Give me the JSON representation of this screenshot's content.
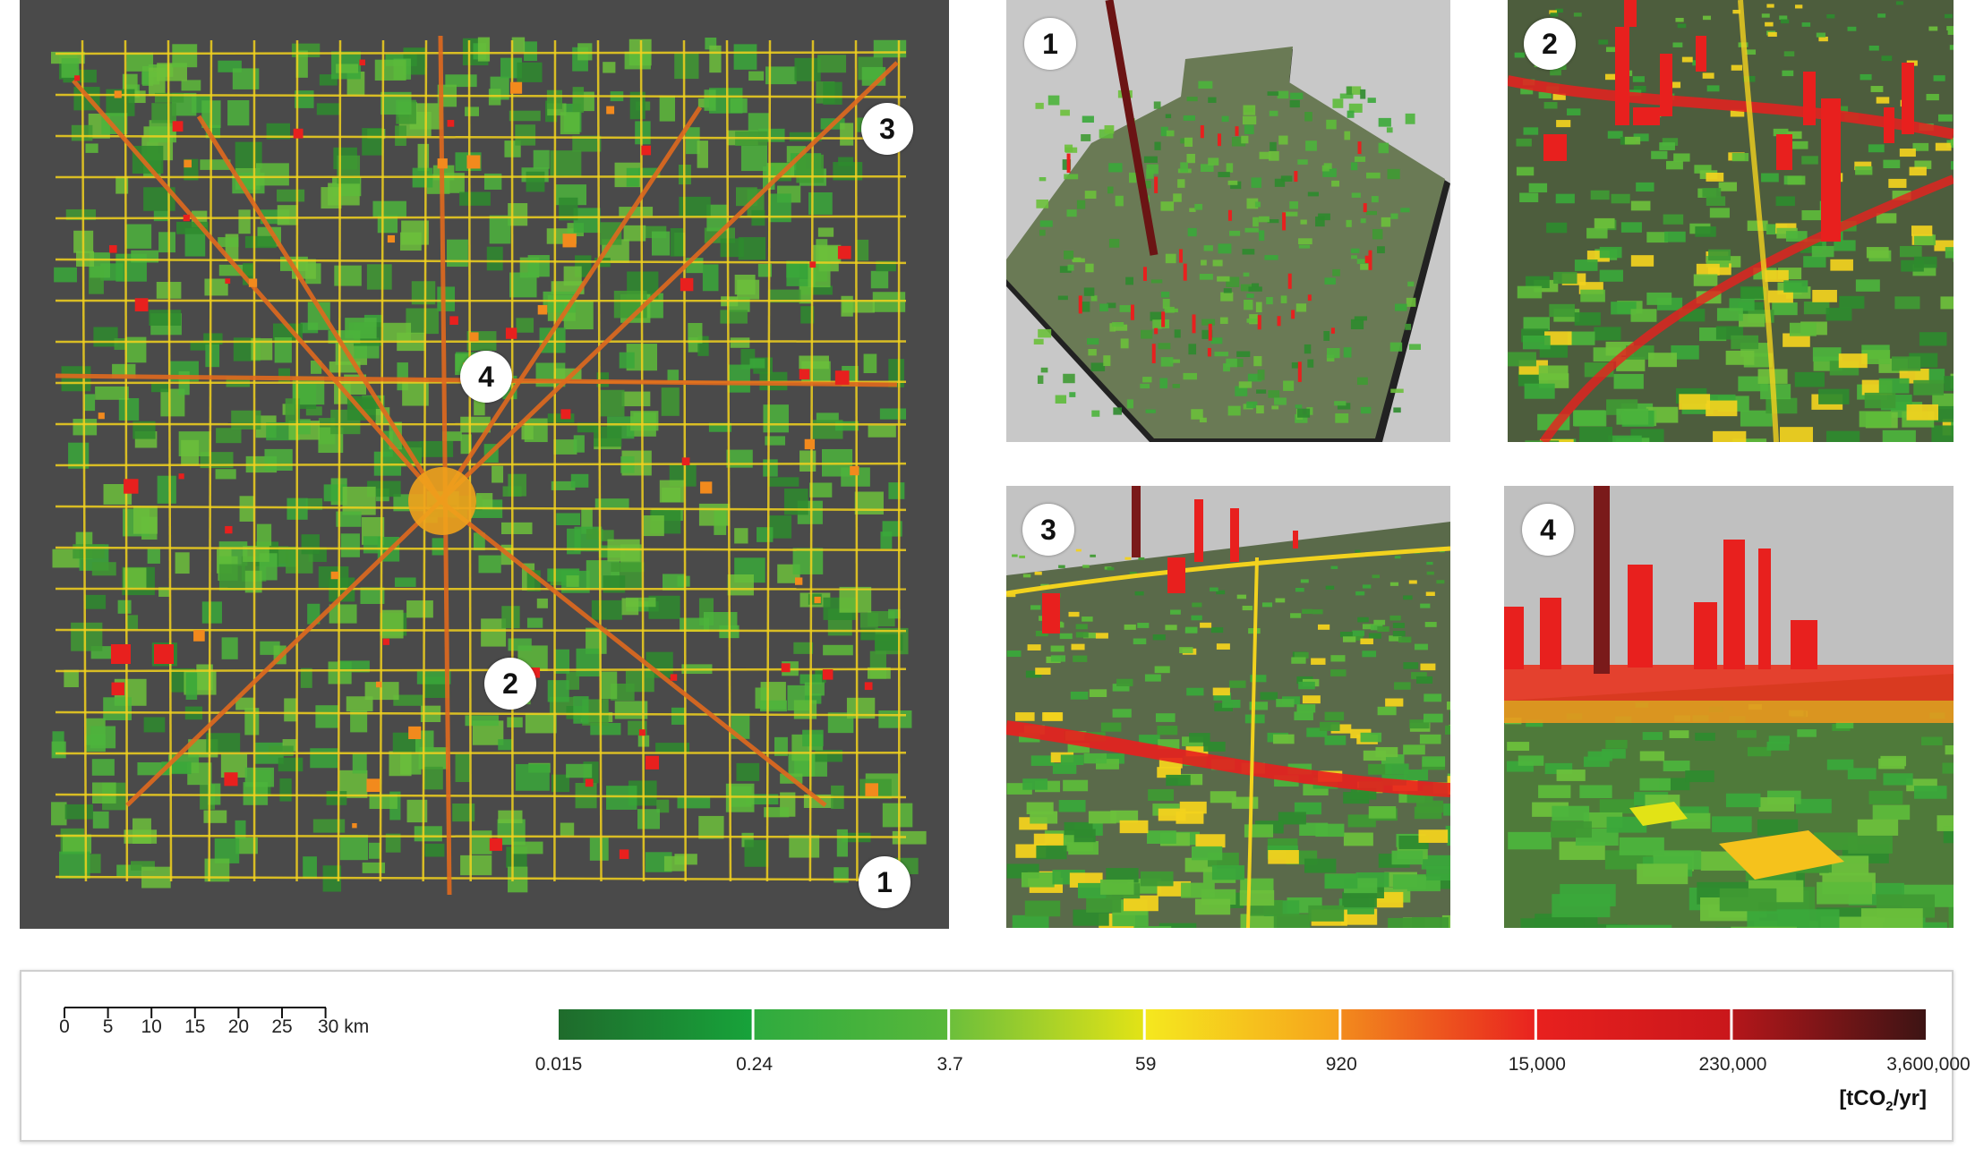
{
  "callouts": {
    "map": [
      "3",
      "4",
      "2",
      "1"
    ],
    "panels": [
      "1",
      "2",
      "3",
      "4"
    ]
  },
  "scale_bar": {
    "ticks": [
      "0",
      "5",
      "10",
      "15",
      "20",
      "25",
      "30 km"
    ]
  },
  "color_scale": {
    "labels": [
      "0.015",
      "0.24",
      "3.7",
      "59",
      "920",
      "15,000",
      "230,000",
      "3,600,000"
    ],
    "segments": [
      {
        "from": "#1f6b2c",
        "to": "#17a33a"
      },
      {
        "from": "#2fab3f",
        "to": "#58b83a"
      },
      {
        "from": "#6cbf3b",
        "to": "#e2e316"
      },
      {
        "from": "#f5e81e",
        "to": "#f6a21c"
      },
      {
        "from": "#f28a1d",
        "to": "#e9231f"
      },
      {
        "from": "#e8201e",
        "to": "#c9171b"
      },
      {
        "from": "#b4161a",
        "to": "#3d1414"
      }
    ],
    "unit_prefix": "[tCO",
    "unit_sub": "2",
    "unit_suffix": "/yr]"
  },
  "colors": {
    "map_background": "#4a4a4a",
    "sky": "#c8c8c8",
    "low": "#3aa83a",
    "mid": "#f2d21e",
    "high": "#e8201e",
    "extreme": "#7a1a1a"
  }
}
